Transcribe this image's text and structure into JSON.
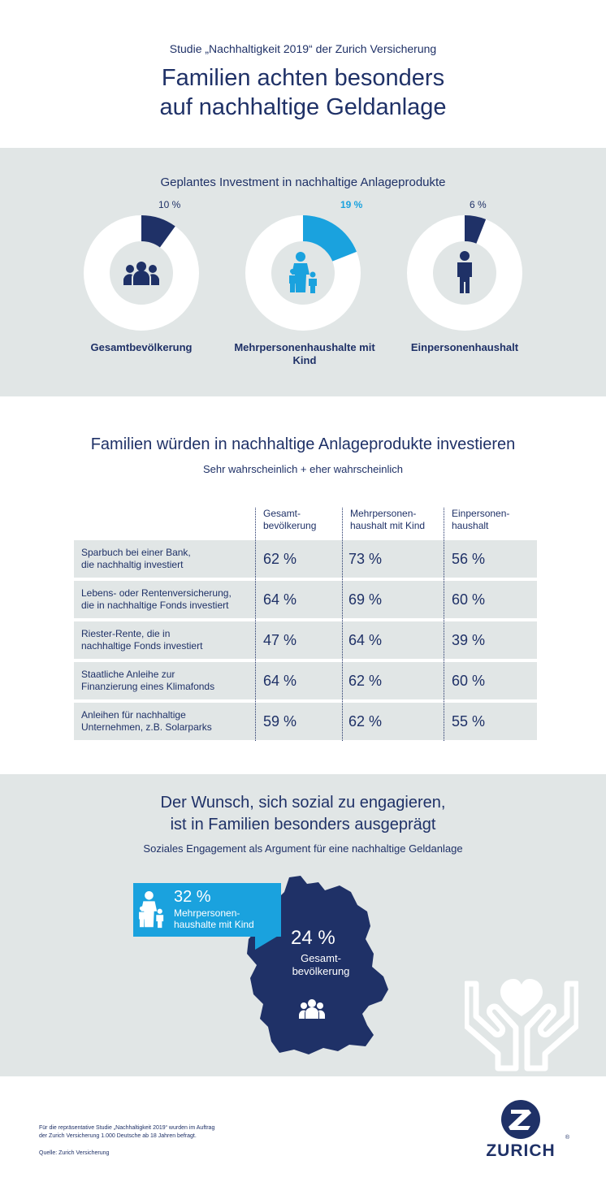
{
  "header": {
    "kicker": "Studie „Nachhaltigkeit 2019“ der Zurich Versicherung",
    "headline_line1": "Familien achten besonders",
    "headline_line2": "auf nachhaltige Geldanlage"
  },
  "colors": {
    "navy": "#1f3167",
    "cyan": "#1aa2de",
    "panel": "#e1e6e6",
    "white": "#ffffff"
  },
  "donuts": {
    "title": "Geplantes Investment in nachhaltige Anlageprodukte",
    "items": [
      {
        "label": "Gesamtbevölkerung",
        "value": 10,
        "value_text": "10 %",
        "icon": "group-icon",
        "color": "#1f3167"
      },
      {
        "label": "Mehrpersonenhaushalte mit Kind",
        "value": 19,
        "value_text": "19 %",
        "icon": "family-icon",
        "color": "#1aa2de"
      },
      {
        "label": "Einpersonenhaushalt",
        "value": 6,
        "value_text": "6 %",
        "icon": "person-icon",
        "color": "#1f3167"
      }
    ]
  },
  "table": {
    "title": "Familien würden in nachhaltige Anlageprodukte investieren",
    "subtitle": "Sehr wahrscheinlich + eher wahrscheinlich",
    "columns": [
      "Gesamt-\nbevölkerung",
      "Mehrpersonen-\nhaushalt mit Kind",
      "Einpersonen-\nhaushalt"
    ],
    "rows": [
      {
        "label": "Sparbuch bei einer Bank,\ndie nachhaltig investiert",
        "values": [
          "62 %",
          "73 %",
          "56 %"
        ]
      },
      {
        "label": "Lebens- oder Rentenversicherung,\ndie in nachhaltige Fonds investiert",
        "values": [
          "64 %",
          "69 %",
          "60 %"
        ]
      },
      {
        "label": "Riester-Rente, die in\nnachhaltige Fonds investiert",
        "values": [
          "47 %",
          "64 %",
          "39 %"
        ]
      },
      {
        "label": "Staatliche Anleihe zur\nFinanzierung eines Klimafonds",
        "values": [
          "64 %",
          "62 %",
          "60 %"
        ]
      },
      {
        "label": "Anleihen für nachhaltige\nUnternehmen, z.B. Solarparks",
        "values": [
          "59 %",
          "62 %",
          "55 %"
        ]
      }
    ]
  },
  "social": {
    "title_line1": "Der Wunsch, sich sozial zu engagieren,",
    "title_line2": "ist in Familien besonders ausgeprägt",
    "subtitle": "Soziales Engagement als Argument für eine nachhaltige Geldanlage",
    "family_value": "32 %",
    "family_label": "Mehrpersonen-\nhaushalte mit Kind",
    "total_value": "24 %",
    "total_label": "Gesamt-\nbevölkerung"
  },
  "footer": {
    "note": "Für die repräsentative Studie „Nachhaltigkeit 2019“ wurden im Auftrag\nder Zurich Versicherung 1.000 Deutsche ab 18 Jahren befragt.",
    "source": "Quelle: Zurich Versicherung",
    "brand": "ZURICH",
    "reg_mark": "®"
  },
  "chart_data": [
    {
      "type": "pie",
      "title": "Geplantes Investment in nachhaltige Anlageprodukte",
      "categories": [
        "Gesamtbevölkerung",
        "Mehrpersonenhaushalte mit Kind",
        "Einpersonenhaushalt"
      ],
      "values": [
        10,
        19,
        6
      ],
      "unit": "%"
    },
    {
      "type": "table",
      "title": "Familien würden in nachhaltige Anlageprodukte investieren",
      "subtitle": "Sehr wahrscheinlich + eher wahrscheinlich",
      "categories": [
        "Sparbuch bei einer Bank, die nachhaltig investiert",
        "Lebens- oder Rentenversicherung, die in nachhaltige Fonds investiert",
        "Riester-Rente, die in nachhaltige Fonds investiert",
        "Staatliche Anleihe zur Finanzierung eines Klimafonds",
        "Anleihen für nachhaltige Unternehmen, z.B. Solarparks"
      ],
      "series": [
        {
          "name": "Gesamtbevölkerung",
          "values": [
            62,
            64,
            47,
            64,
            59
          ]
        },
        {
          "name": "Mehrpersonenhaushalt mit Kind",
          "values": [
            73,
            69,
            64,
            62,
            62
          ]
        },
        {
          "name": "Einpersonenhaushalt",
          "values": [
            56,
            60,
            39,
            60,
            55
          ]
        }
      ],
      "unit": "%"
    },
    {
      "type": "bar",
      "title": "Soziales Engagement als Argument für eine nachhaltige Geldanlage",
      "categories": [
        "Mehrpersonenhaushalte mit Kind",
        "Gesamtbevölkerung"
      ],
      "values": [
        32,
        24
      ],
      "unit": "%"
    }
  ]
}
